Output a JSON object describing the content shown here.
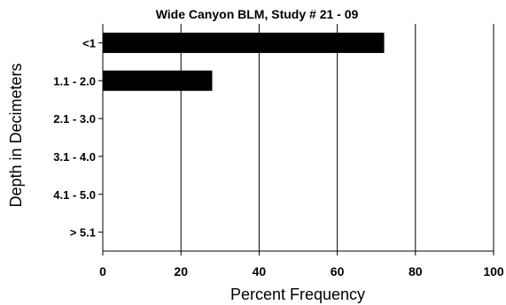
{
  "chart_data": {
    "type": "bar",
    "orientation": "horizontal",
    "title": "Wide Canyon BLM, Study # 21 - 09",
    "xlabel": "Percent Frequency",
    "ylabel": "Depth in Decimeters",
    "categories": [
      "<1",
      "1.1 - 2.0",
      "2.1 - 3.0",
      "3.1 - 4.0",
      "4.1 - 5.0",
      "> 5.1"
    ],
    "values": [
      72,
      28,
      0,
      0,
      0,
      0
    ],
    "xlim": [
      0,
      100
    ],
    "xticks": [
      "0",
      "20",
      "40",
      "60",
      "80",
      "100"
    ],
    "grid": "vertical",
    "bar_color": "#000000"
  }
}
